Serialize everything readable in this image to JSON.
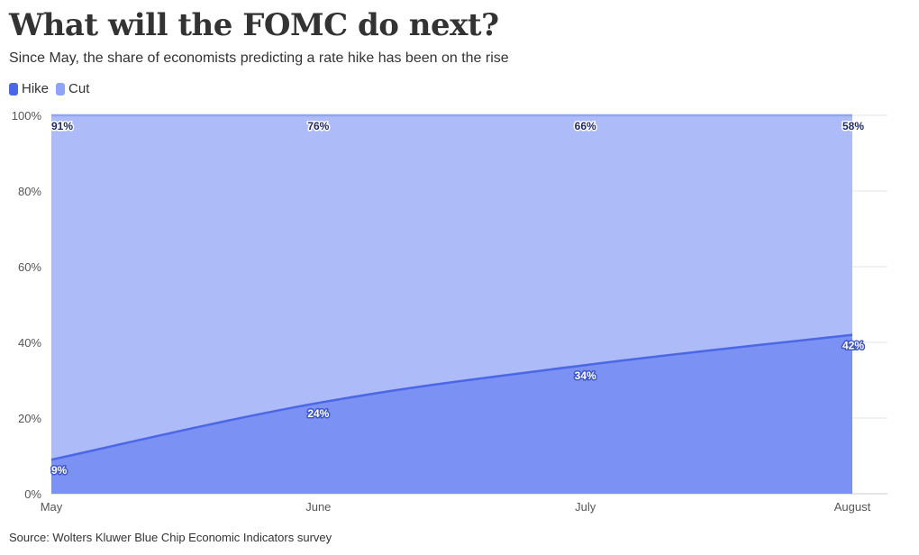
{
  "header": {
    "title": "What will the FOMC do next?",
    "subtitle": "Since May, the share of economists predicting a rate hike has been on the rise"
  },
  "footer": {
    "source": "Source: Wolters Kluwer Blue Chip Economic Indicators survey"
  },
  "colors": {
    "hike": "#4b67e6",
    "cut": "#8fa4f5",
    "hike_area": "#7b91f4",
    "cut_area": "#adbcf8",
    "grid": "#e6e6e6",
    "axis": "#cccccc"
  },
  "chart_data": {
    "type": "area",
    "stacked": true,
    "title": "What will the FOMC do next?",
    "subtitle": "Since May, the share of economists predicting a rate hike has been on the rise",
    "categories": [
      "May",
      "June",
      "July",
      "August"
    ],
    "series": [
      {
        "name": "Hike",
        "values": [
          9,
          24,
          34,
          42
        ],
        "labels": [
          "9%",
          "24%",
          "34%",
          "42%"
        ]
      },
      {
        "name": "Cut",
        "values": [
          91,
          76,
          66,
          58
        ],
        "labels": [
          "91%",
          "76%",
          "66%",
          "58%"
        ]
      }
    ],
    "ylim": [
      0,
      100
    ],
    "yticks": [
      0,
      20,
      40,
      60,
      80,
      100
    ],
    "ytick_labels": [
      "0%",
      "20%",
      "40%",
      "60%",
      "80%",
      "100%"
    ],
    "grid": true,
    "legend": "top-left",
    "xlabel": "",
    "ylabel": ""
  }
}
